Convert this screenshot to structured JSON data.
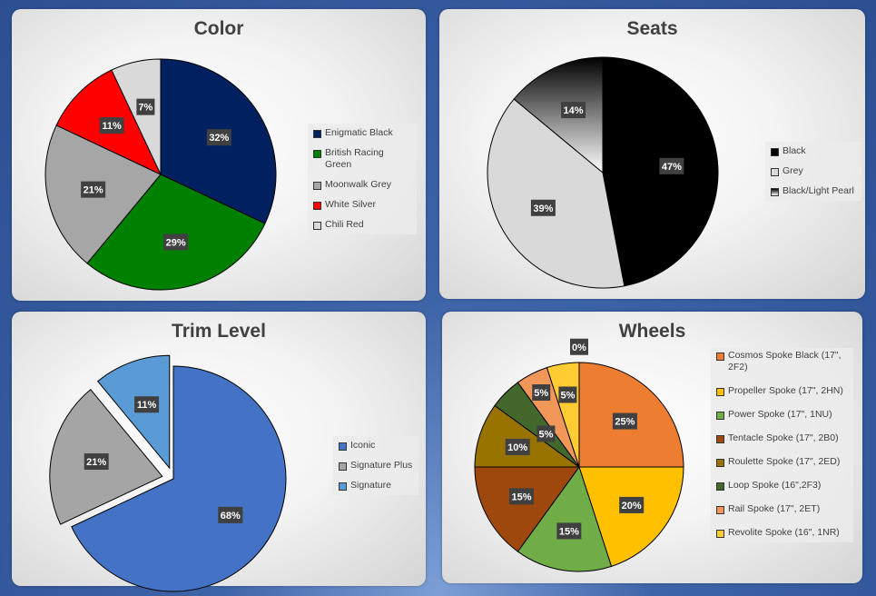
{
  "charts": [
    {
      "title": "Color",
      "type": "pie",
      "start_angle": 0,
      "explode": false,
      "slices": [
        {
          "name": "Enigmatic Black",
          "value": 32,
          "label": "32%",
          "color": "#002060"
        },
        {
          "name": "British Racing Green",
          "value": 29,
          "label": "29%",
          "color": "#008000"
        },
        {
          "name": "Moonwalk Grey",
          "value": 21,
          "label": "21%",
          "color": "#A6A6A6"
        },
        {
          "name": "White Silver",
          "value": 11,
          "label": "11%",
          "color": "#FF0000"
        },
        {
          "name": "Chili Red",
          "value": 7,
          "label": "7%",
          "color": "#D9D9D9"
        }
      ]
    },
    {
      "title": "Seats",
      "type": "pie",
      "explode": false,
      "slices": [
        {
          "name": "Black",
          "value": 47,
          "label": "47%",
          "color": "#000000"
        },
        {
          "name": "Grey",
          "value": 39,
          "label": "39%",
          "color": "#D9D9D9"
        },
        {
          "name": "Black/Light Pearl",
          "value": 14,
          "label": "14%",
          "color": "gradient"
        }
      ]
    },
    {
      "title": "Trim Level",
      "type": "pie",
      "explode": true,
      "slices": [
        {
          "name": "Iconic",
          "value": 68,
          "label": "68%",
          "color": "#4472C4"
        },
        {
          "name": "Signature Plus",
          "value": 21,
          "label": "21%",
          "color": "#A5A5A5"
        },
        {
          "name": "Signature",
          "value": 11,
          "label": "11%",
          "color": "#5B9BD5"
        }
      ]
    },
    {
      "title": "Wheels",
      "type": "pie",
      "explode": false,
      "slices": [
        {
          "name": "Cosmos Spoke Black (17\", 2F2)",
          "value": 25,
          "label": "25%",
          "color": "#ED7D31"
        },
        {
          "name": "Propeller Spoke (17\", 2HN)",
          "value": 20,
          "label": "20%",
          "color": "#FFC000"
        },
        {
          "name": "Power Spoke (17\", 1NU)",
          "value": 15,
          "label": "15%",
          "color": "#70AD47"
        },
        {
          "name": "Tentacle Spoke (17\", 2B0)",
          "value": 15,
          "label": "15%",
          "color": "#9E480E"
        },
        {
          "name": "Roulette Spoke (17\", 2ED)",
          "value": 10,
          "label": "10%",
          "color": "#997300"
        },
        {
          "name": "Loop Spoke (16\",2F3)",
          "value": 5,
          "label": "5%",
          "color": "#43682B"
        },
        {
          "name": "Rail Spoke (17\", 2ET)",
          "value": 5,
          "label": "5%",
          "color": "#F1975A"
        },
        {
          "name": "Revolite Spoke (16\", 1NR)",
          "value": 5,
          "label": "5%",
          "color": "#FFCD33"
        },
        {
          "name": "",
          "value": 0,
          "label": "0%",
          "color": "#BFBFBF"
        }
      ]
    }
  ]
}
